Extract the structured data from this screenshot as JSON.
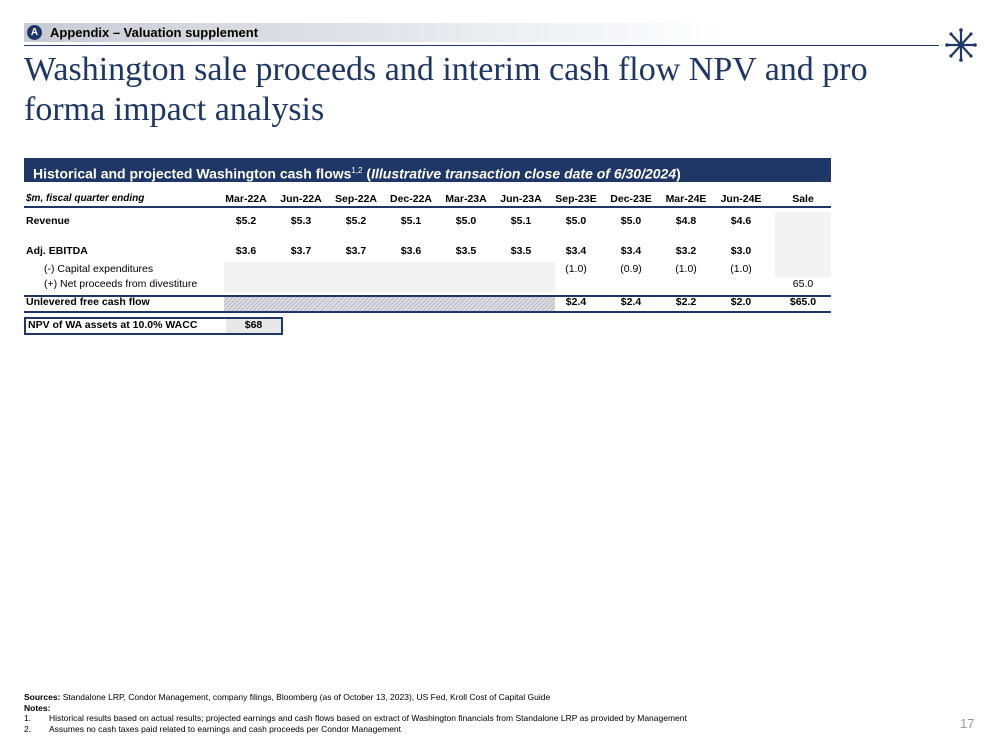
{
  "section": {
    "badge": "A",
    "label": "Appendix – Valuation supplement"
  },
  "title": "Washington sale proceeds and interim cash flow NPV and pro forma impact analysis",
  "table": {
    "header": "Historical and projected Washington cash flows",
    "header_sup": "1,2",
    "header_note": "Illustrative transaction close date of 6/30/2024",
    "units_label": "$m, fiscal quarter ending",
    "columns": [
      "Mar-22A",
      "Jun-22A",
      "Sep-22A",
      "Dec-22A",
      "Mar-23A",
      "Jun-23A",
      "Sep-23E",
      "Dec-23E",
      "Mar-24E",
      "Jun-24E",
      "Sale"
    ],
    "rows": [
      {
        "label": "Revenue",
        "values": [
          "$5.2",
          "$5.3",
          "$5.2",
          "$5.1",
          "$5.0",
          "$5.1",
          "$5.0",
          "$5.0",
          "$4.8",
          "$4.6",
          ""
        ]
      },
      {
        "label": "Adj. EBITDA",
        "values": [
          "$3.6",
          "$3.7",
          "$3.7",
          "$3.6",
          "$3.5",
          "$3.5",
          "$3.4",
          "$3.4",
          "$3.2",
          "$3.0",
          ""
        ]
      },
      {
        "label": "(-) Capital expenditures",
        "values": [
          "",
          "",
          "",
          "",
          "",
          "",
          "(1.0)",
          "(0.9)",
          "(1.0)",
          "(1.0)",
          ""
        ]
      },
      {
        "label": "(+) Net proceeds from divestiture",
        "values": [
          "",
          "",
          "",
          "",
          "",
          "",
          "",
          "",
          "",
          "",
          "65.0"
        ]
      }
    ],
    "total": {
      "label": "Unlevered free cash flow",
      "values": [
        "",
        "",
        "",
        "",
        "",
        "",
        "$2.4",
        "$2.4",
        "$2.2",
        "$2.0",
        "$65.0"
      ]
    },
    "npv": {
      "label": "NPV of WA assets at 10.0% WACC",
      "value": "$68"
    }
  },
  "footnotes": {
    "sources_label": "Sources:",
    "sources": "Standalone LRP, Condor Management, company filings, Bloomberg (as of October 13, 2023), US Fed, Kroll Cost of Capital Guide",
    "notes_label": "Notes:",
    "notes": [
      {
        "num": "1.",
        "text": "Historical results based on actual results; projected earnings and cash flows based on extract of Washington financials from Standalone LRP as provided by Management"
      },
      {
        "num": "2.",
        "text": "Assumes no cash taxes paid related to earnings and cash proceeds per Condor Management"
      }
    ]
  },
  "page_number": "17",
  "colors": {
    "navy": "#1e3766",
    "page_number": "#9a9a9a"
  },
  "icons": {
    "logo": "starburst-logo-icon"
  }
}
